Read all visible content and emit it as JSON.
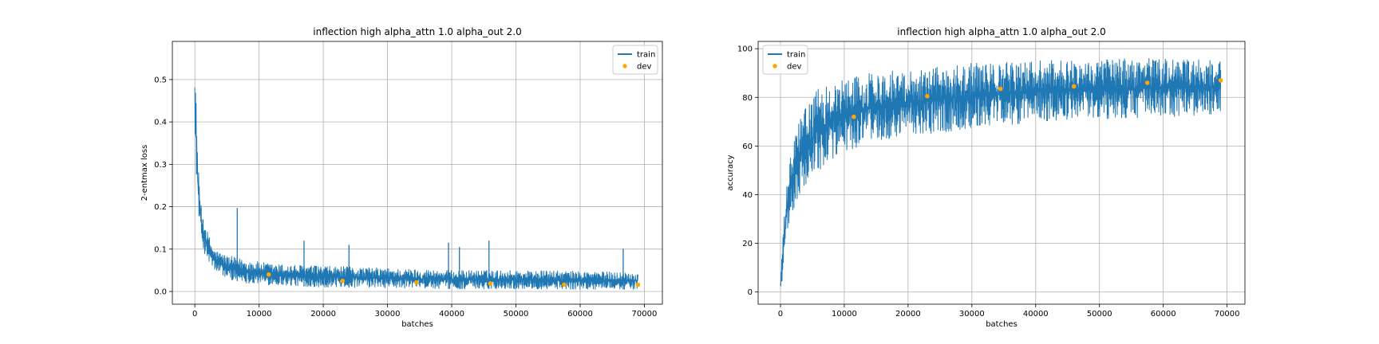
{
  "chart_data": [
    {
      "type": "line",
      "title": "inflection high alpha_attn 1.0 alpha_out 2.0",
      "xlabel": "batches",
      "ylabel": "2-entmax loss",
      "xlim": [
        -3500,
        72800
      ],
      "ylim": [
        -0.03,
        0.59
      ],
      "xticks": [
        0,
        10000,
        20000,
        30000,
        40000,
        50000,
        60000,
        70000
      ],
      "xtick_labels": [
        "0",
        "10000",
        "20000",
        "30000",
        "40000",
        "50000",
        "60000",
        "70000"
      ],
      "yticks": [
        0.0,
        0.1,
        0.2,
        0.3,
        0.4,
        0.5
      ],
      "ytick_labels": [
        "0.0",
        "0.1",
        "0.2",
        "0.3",
        "0.4",
        "0.5"
      ],
      "grid": true,
      "legend_position": "top-right",
      "train_color": "#1f77b4",
      "dev_color": "#ffa500",
      "series": [
        {
          "name": "train",
          "style": "noisy-line",
          "x": [
            0,
            200,
            500,
            1000,
            2000,
            3000,
            5000,
            8000,
            12000,
            20000,
            30000,
            40000,
            50000,
            60000,
            69000
          ],
          "lower": [
            0.4,
            0.28,
            0.2,
            0.11,
            0.07,
            0.05,
            0.03,
            0.02,
            0.015,
            0.01,
            0.008,
            0.006,
            0.006,
            0.005,
            0.005
          ],
          "upper": [
            0.56,
            0.45,
            0.3,
            0.2,
            0.14,
            0.1,
            0.085,
            0.075,
            0.065,
            0.06,
            0.055,
            0.05,
            0.05,
            0.048,
            0.045
          ],
          "spikes": [
            [
              6600,
              0.197
            ],
            [
              17000,
              0.12
            ],
            [
              24000,
              0.11
            ],
            [
              39500,
              0.115
            ],
            [
              41200,
              0.105
            ],
            [
              45800,
              0.12
            ],
            [
              66700,
              0.101
            ]
          ]
        },
        {
          "name": "dev",
          "style": "points",
          "x": [
            11500,
            23000,
            34500,
            46000,
            57500,
            69000
          ],
          "values": [
            0.04,
            0.025,
            0.021,
            0.019,
            0.016,
            0.016
          ]
        }
      ]
    },
    {
      "type": "line",
      "title": "inflection high alpha_attn 1.0 alpha_out 2.0",
      "xlabel": "batches",
      "ylabel": "accuracy",
      "xlim": [
        -3500,
        72800
      ],
      "ylim": [
        -5,
        103
      ],
      "xticks": [
        0,
        10000,
        20000,
        30000,
        40000,
        50000,
        60000,
        70000
      ],
      "xtick_labels": [
        "0",
        "10000",
        "20000",
        "30000",
        "40000",
        "50000",
        "60000",
        "70000"
      ],
      "yticks": [
        0,
        20,
        40,
        60,
        80,
        100
      ],
      "ytick_labels": [
        "0",
        "20",
        "40",
        "60",
        "80",
        "100"
      ],
      "grid": true,
      "legend_position": "top-left",
      "train_color": "#1f77b4",
      "dev_color": "#ffa500",
      "series": [
        {
          "name": "train",
          "style": "noisy-line",
          "x": [
            0,
            300,
            700,
            1200,
            2000,
            3000,
            4500,
            6000,
            8000,
            10000,
            14000,
            20000,
            30000,
            40000,
            50000,
            60000,
            69000
          ],
          "lower": [
            0,
            5,
            15,
            25,
            32,
            40,
            45,
            50,
            54,
            57,
            62,
            64,
            67,
            70,
            71,
            72,
            73
          ],
          "upper": [
            5,
            20,
            35,
            50,
            62,
            72,
            78,
            84,
            86,
            88,
            90,
            92,
            94,
            95,
            96,
            96,
            95
          ],
          "spikes": []
        },
        {
          "name": "dev",
          "style": "points",
          "x": [
            11500,
            23000,
            34500,
            46000,
            57500,
            69000
          ],
          "values": [
            72,
            80.5,
            83.5,
            84.5,
            86,
            87
          ]
        }
      ]
    }
  ]
}
